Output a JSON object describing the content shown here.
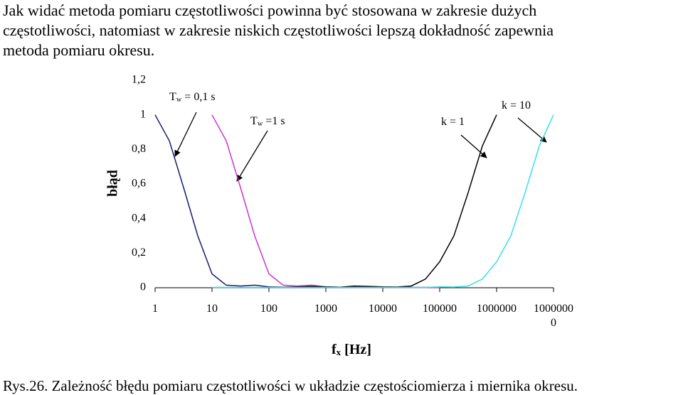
{
  "paragraph": [
    "Jak widać metoda pomiaru częstotliwości powinna być stosowana w zakresie dużych",
    "częstotliwości, natomiast w zakresie niskich częstotliwości lepszą dokładność zapewnia",
    "metoda pomiaru okresu."
  ],
  "chart_data": {
    "type": "line",
    "ylabel": "błąd",
    "xlabel": {
      "main": "f",
      "sub": "x",
      "rest": " [Hz]"
    },
    "log_x": true,
    "xlim": [
      1,
      10000000
    ],
    "xticks": [
      1,
      10,
      100,
      1000,
      10000,
      100000,
      1000000,
      10000000
    ],
    "ylim": [
      0,
      1.2
    ],
    "yticks": [
      0,
      {
        "value": 0.2,
        "label": "0,2"
      },
      {
        "value": 0.4,
        "label": "0,4"
      },
      {
        "value": 0.6,
        "label": "0,6"
      },
      {
        "value": 0.8,
        "label": "0,8"
      },
      1,
      {
        "value": 1.2,
        "label": "1,2"
      }
    ],
    "x": [
      1,
      1.78,
      3.16,
      5.62,
      10,
      17.8,
      31.6,
      56.2,
      100,
      178,
      316,
      562,
      1000,
      1780,
      3160,
      5620,
      10000,
      17800,
      31600,
      56200,
      100000,
      178000,
      316000,
      562000,
      1000000,
      1780000,
      3160000,
      5620000,
      10000000
    ],
    "series": [
      {
        "color": "#1a1a6e",
        "values": [
          1.0,
          0.85,
          0.58,
          0.3,
          0.08,
          0.015,
          0.01,
          0.015,
          0.005,
          0.003,
          0.002,
          0.002,
          0.002,
          0.002,
          0.002,
          0.002,
          0.002,
          0.002,
          0.002,
          null,
          null,
          null,
          null,
          null,
          null,
          null,
          null,
          null,
          null
        ]
      },
      {
        "color": "#cc33cc",
        "values": [
          null,
          null,
          null,
          null,
          1.0,
          0.85,
          0.58,
          0.3,
          0.08,
          0.015,
          0.01,
          0.015,
          0.005,
          0.003,
          0.002,
          0.002,
          0.002,
          0.002,
          0.002,
          0.002,
          0.002,
          null,
          null,
          null,
          null,
          null,
          null,
          null,
          null
        ]
      },
      {
        "color": "#000000",
        "values": [
          null,
          null,
          null,
          null,
          null,
          null,
          null,
          null,
          0.003,
          0.003,
          0.005,
          0.008,
          0.005,
          0.003,
          0.01,
          0.008,
          0.005,
          0.004,
          0.01,
          0.05,
          0.15,
          0.3,
          0.55,
          0.82,
          1.0,
          null,
          null,
          null,
          null
        ]
      },
      {
        "color": "#33e0e8",
        "values": [
          null,
          null,
          null,
          null,
          0.002,
          0.002,
          0.002,
          0.002,
          0.002,
          0.002,
          0.002,
          0.002,
          0.002,
          0.002,
          0.002,
          0.002,
          0.002,
          0.002,
          0.002,
          0.002,
          0.005,
          0.004,
          0.01,
          0.05,
          0.15,
          0.3,
          0.55,
          0.82,
          1.0
        ]
      }
    ],
    "annotations": [
      {
        "main": "T",
        "sub": "w",
        "rest": " = 0,1 s"
      },
      {
        "main": "T",
        "sub": "w",
        "rest": " =1 s"
      },
      {
        "main": "k = 1"
      },
      {
        "main": "k = 10"
      }
    ]
  },
  "caption": "Rys.26. Zależność błędu pomiaru częstotliwości w układzie częstościomierza i miernika okresu."
}
